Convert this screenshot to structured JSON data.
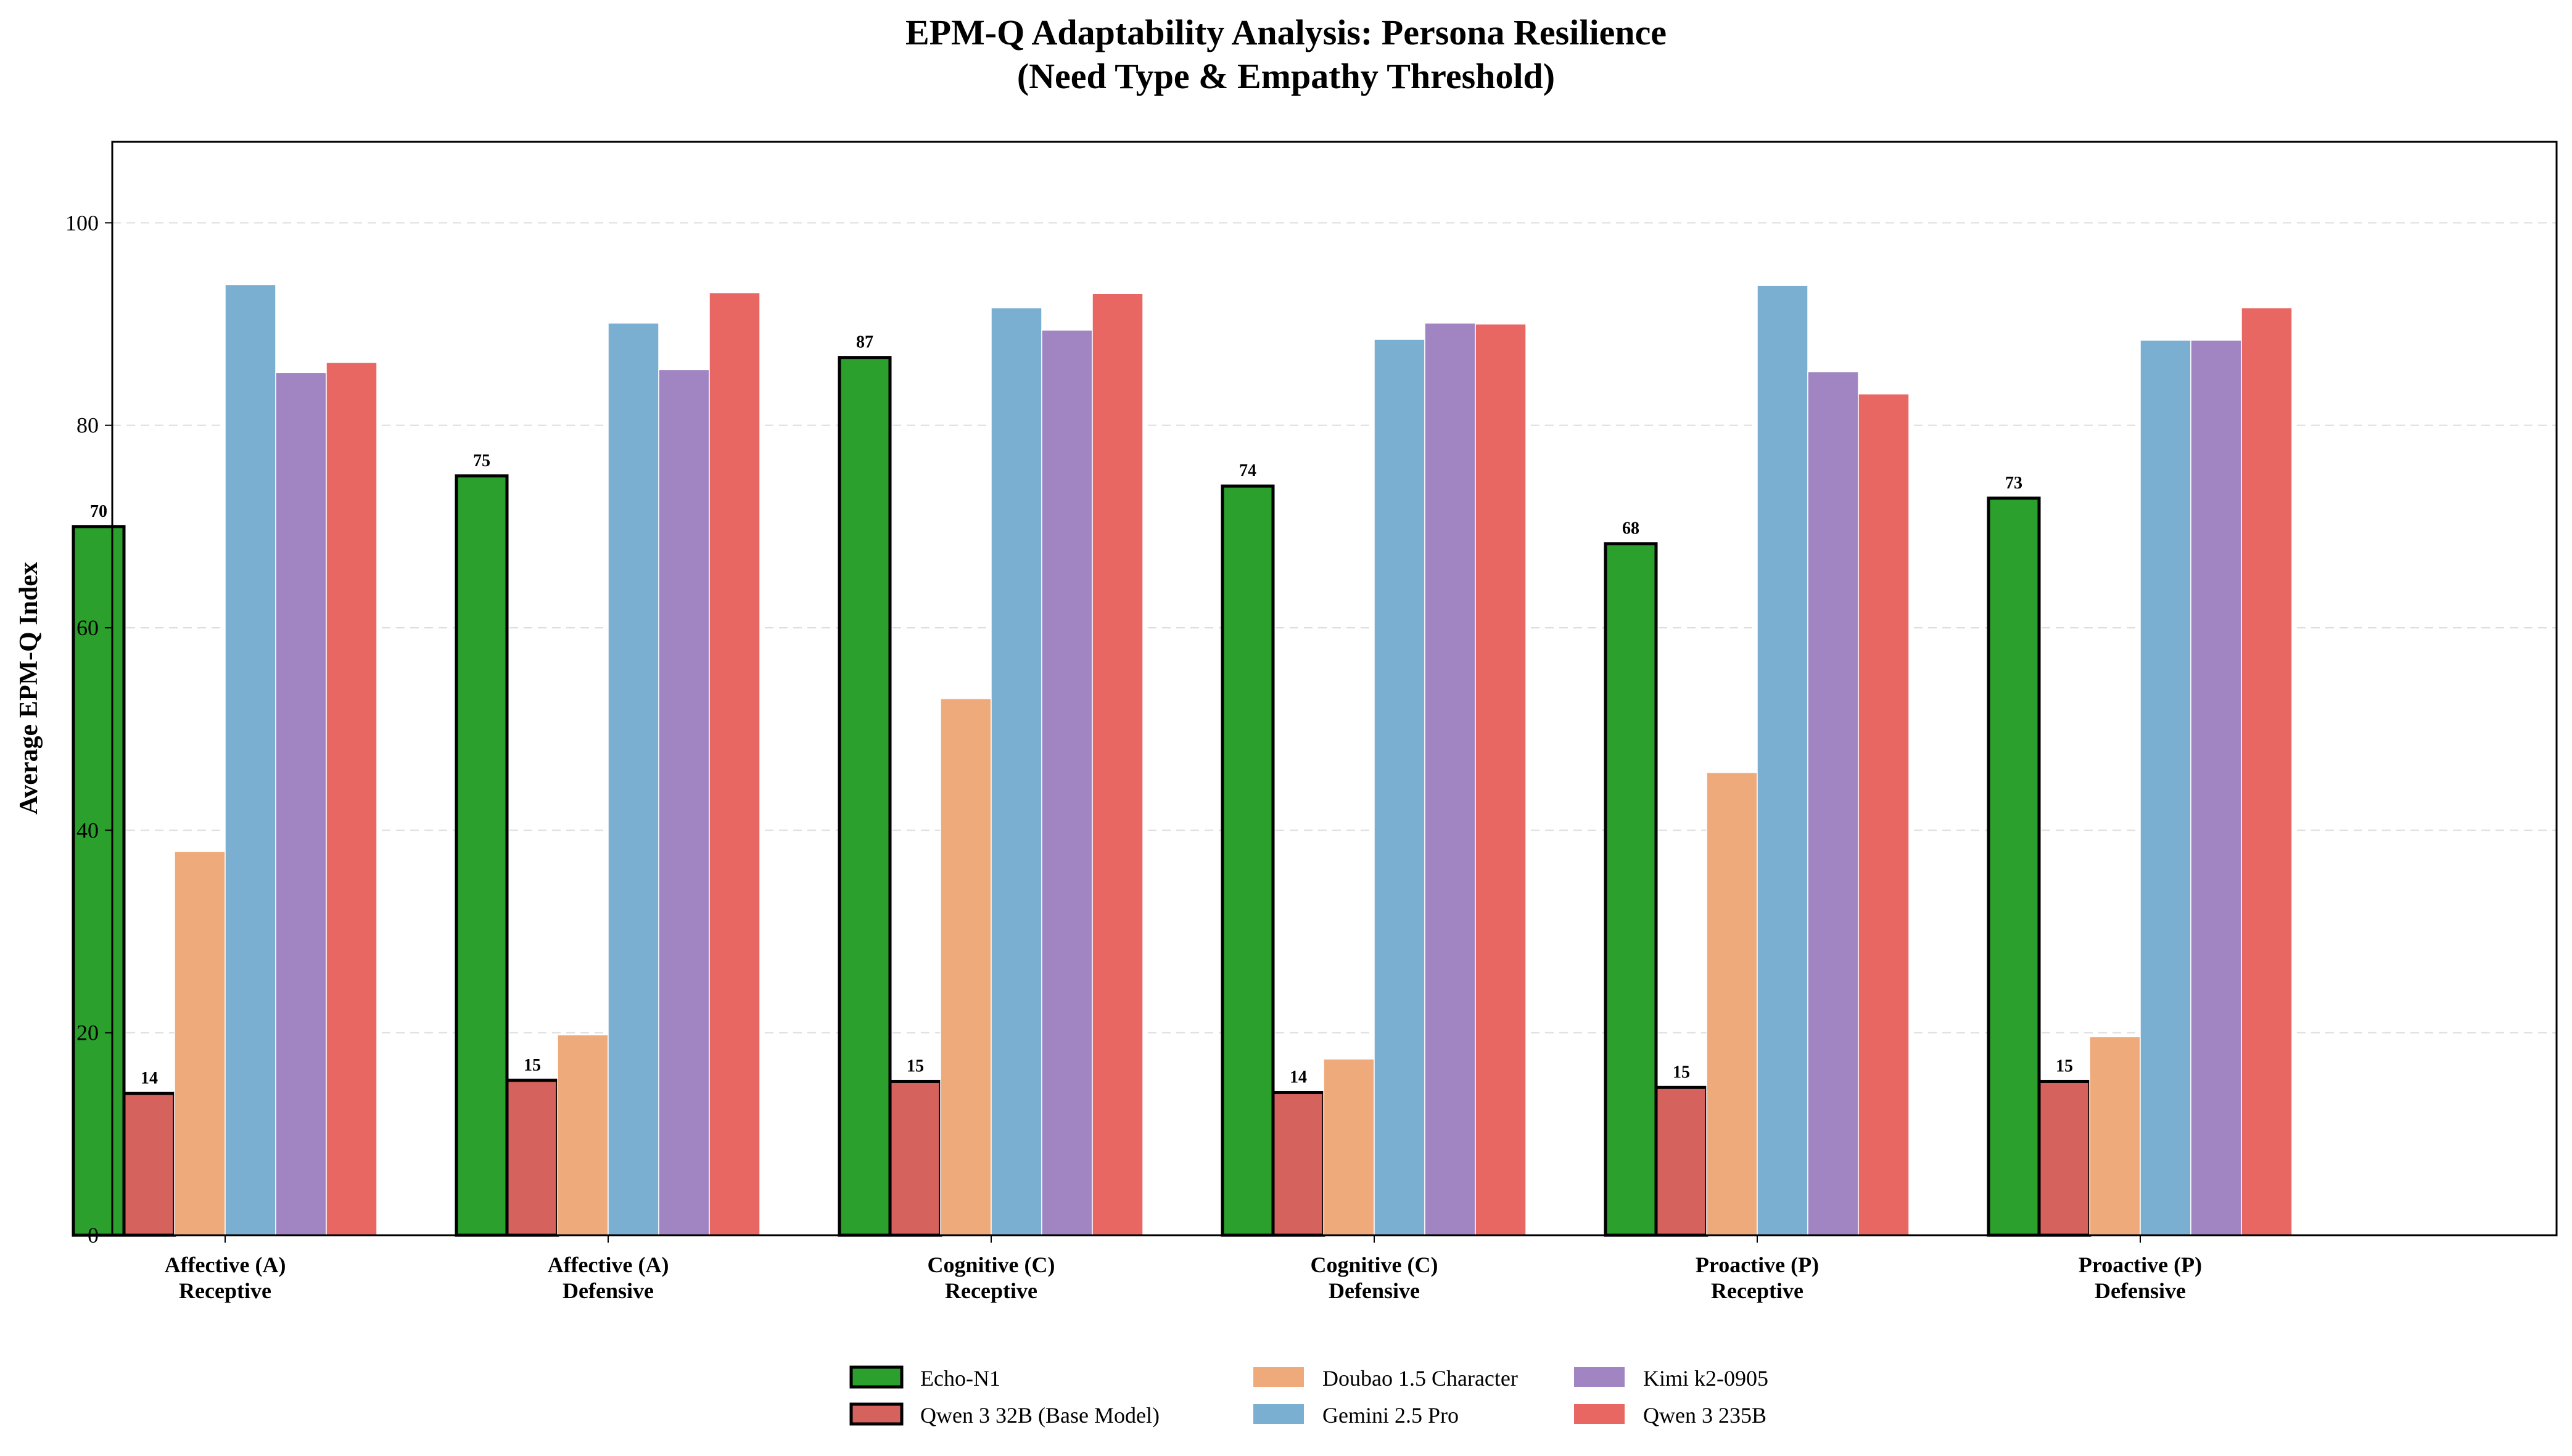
{
  "chart_data": {
    "type": "bar",
    "title": "EPM-Q Adaptability Analysis: Persona Resilience",
    "subtitle": "(Need Type & Empathy Threshold)",
    "xlabel": "",
    "ylabel": "Average EPM-Q Index",
    "ylim": [
      0,
      108
    ],
    "yticks": [
      0,
      20,
      40,
      60,
      80,
      100
    ],
    "grid": "y-dashed",
    "legend_position": "bottom-center",
    "categories": [
      [
        "Affective (A)",
        "Receptive"
      ],
      [
        "Affective (A)",
        "Defensive"
      ],
      [
        "Cognitive (C)",
        "Receptive"
      ],
      [
        "Cognitive (C)",
        "Defensive"
      ],
      [
        "Proactive (P)",
        "Receptive"
      ],
      [
        "Proactive (P)",
        "Defensive"
      ]
    ],
    "series": [
      {
        "name": "Echo-N1",
        "color": "#2ca02c",
        "outlined": true,
        "values": [
          70,
          75,
          86.7,
          74,
          68.3,
          72.8
        ],
        "labels": [
          "70",
          "75",
          "87",
          "74",
          "68",
          "73"
        ]
      },
      {
        "name": "Qwen 3 32B (Base Model)",
        "color": "#d6625e",
        "outlined": true,
        "values": [
          14,
          15.3,
          15.2,
          14.1,
          14.6,
          15.2
        ],
        "labels": [
          "14",
          "15",
          "15",
          "14",
          "15",
          "15"
        ]
      },
      {
        "name": "Doubao 1.5 Character",
        "color": "#eeaa7a",
        "outlined": false,
        "values": [
          37.9,
          19.8,
          53,
          17.4,
          45.7,
          19.6
        ]
      },
      {
        "name": "Gemini 2.5 Pro",
        "color": "#7aafd2",
        "outlined": false,
        "values": [
          93.9,
          90.1,
          91.6,
          88.5,
          93.8,
          88.4
        ]
      },
      {
        "name": "Kimi k2-0905",
        "color": "#a085c2",
        "outlined": false,
        "values": [
          85.2,
          85.5,
          89.4,
          90.1,
          85.3,
          88.4
        ]
      },
      {
        "name": "Qwen 3 235B",
        "color": "#e86762",
        "outlined": false,
        "values": [
          86.2,
          93.1,
          93,
          90,
          83.1,
          91.6
        ]
      }
    ]
  }
}
